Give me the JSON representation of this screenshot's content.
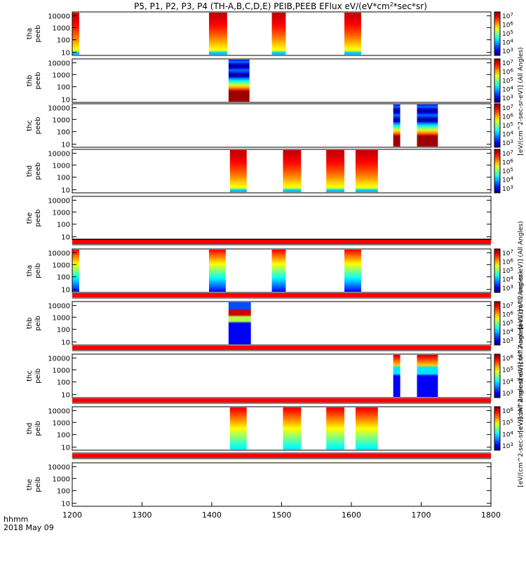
{
  "chart_data": {
    "type": "heatmap",
    "title": "P5, P1, P2, P3, P4 (TH-A,B,C,D,E) PEIB,PEEB EFlux eV/(eV*cm^2*sec*sr)",
    "title_plain": "P5, P1, P2, P3, P4 (TH-A,B,C,D,E) PEIB,PEEB EFlux eV/(eV*cm",
    "title_sup": "2",
    "title_end": "*sec*sr)",
    "x_label_prefix": "hhmm",
    "date_label": "2018 May 09",
    "xlim": [
      1200,
      1800
    ],
    "x_ticks": [
      "1200",
      "1300",
      "1400",
      "1500",
      "1600",
      "1700",
      "1800"
    ],
    "y_scale": "log",
    "y_ticks": [
      "10",
      "100",
      "1000",
      "10000"
    ],
    "colorbars": [
      {
        "label": "[eV/(cm^2-sec-sr-eV)] (All Angles)",
        "ticks": [
          "10^3",
          "10^4",
          "10^5",
          "10^6",
          "10^7"
        ]
      },
      {
        "label": "[eV/(cm^2-sec-sr-eV)] (All Angles)",
        "ticks": [
          "10^3",
          "10^4",
          "10^5",
          "10^6",
          "10^7"
        ]
      },
      {
        "label": "[eV/(cm^2-sec-sr-eV)] (All Angles)",
        "ticks": [
          "10^3",
          "10^4",
          "10^5",
          "10^6",
          "10^7"
        ]
      },
      {
        "label": "[eV/(cm^2-sec-sr-eV)] (All Angles)",
        "ticks": [
          "10^3",
          "10^4",
          "10^5",
          "10^6",
          "10^7"
        ]
      },
      {
        "label": "[eV/(cm^2-sec-sr-eV)] (All Angles)",
        "ticks": [
          "10^4",
          "10^5",
          "10^6"
        ]
      },
      {
        "label": "[eV/(cm^2-sec-sr-eV)] (All Angles)",
        "ticks": [
          "10^3",
          "10^4",
          "10^5",
          "10^6",
          "10^7"
        ]
      },
      {
        "label": "[eV/(cm^2-sec-sr-eV)] (All Angles)",
        "ticks": [
          "10^3",
          "10^4",
          "10^5",
          "10^6",
          "10^7"
        ]
      },
      {
        "label": "[eV/(cm^2-sec-sr-eV)] (All Angles)",
        "ticks": [
          "10^3",
          "10^4",
          "10^5",
          "10^6"
        ]
      }
    ],
    "panels": [
      {
        "name": "tha peeb",
        "line1": "tha",
        "line2": "peeb",
        "profile": "ehot",
        "intervals": [
          [
            1200,
            1210
          ],
          [
            1396,
            1422
          ],
          [
            1486,
            1506
          ],
          [
            1590,
            1614
          ]
        ]
      },
      {
        "name": "thb peeb",
        "line1": "thb",
        "line2": "peeb",
        "profile": "ecold",
        "intervals": [
          [
            1424,
            1454
          ]
        ]
      },
      {
        "name": "thc peeb",
        "line1": "thc",
        "line2": "peeb",
        "profile": "ecold",
        "intervals": [
          [
            1660,
            1670
          ],
          [
            1694,
            1724
          ]
        ]
      },
      {
        "name": "thd peeb",
        "line1": "thd",
        "line2": "peeb",
        "profile": "ehot",
        "intervals": [
          [
            1426,
            1450
          ],
          [
            1502,
            1528
          ],
          [
            1564,
            1590
          ],
          [
            1606,
            1638
          ]
        ]
      },
      {
        "name": "the peeb",
        "line1": "the",
        "line2": "peeb",
        "profile": "none",
        "intervals": []
      },
      {
        "name": "tha peib",
        "line1": "tha",
        "line2": "peib",
        "profile": "ion",
        "intervals": [
          [
            1200,
            1210
          ],
          [
            1396,
            1420
          ],
          [
            1486,
            1506
          ],
          [
            1590,
            1614
          ]
        ]
      },
      {
        "name": "thb peib",
        "line1": "thb",
        "line2": "peib",
        "profile": "ionb",
        "intervals": [
          [
            1424,
            1456
          ]
        ]
      },
      {
        "name": "thc peib",
        "line1": "thc",
        "line2": "peib",
        "profile": "ionc",
        "intervals": [
          [
            1660,
            1670
          ],
          [
            1694,
            1724
          ]
        ]
      },
      {
        "name": "thd peib",
        "line1": "thd",
        "line2": "peib",
        "profile": "iond",
        "intervals": [
          [
            1426,
            1450
          ],
          [
            1502,
            1528
          ],
          [
            1564,
            1590
          ],
          [
            1606,
            1638
          ]
        ]
      },
      {
        "name": "the peib",
        "line1": "the",
        "line2": "peib",
        "profile": "none",
        "intervals": []
      }
    ],
    "red_bands": 5,
    "grid": false,
    "legend": "colorbars right"
  }
}
